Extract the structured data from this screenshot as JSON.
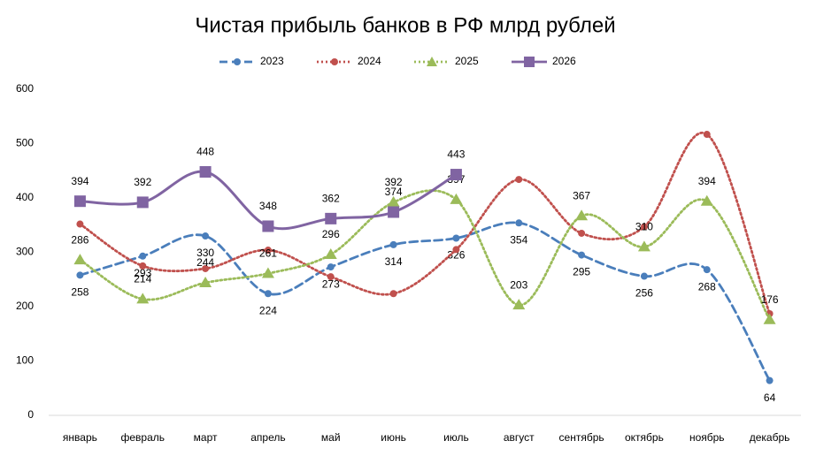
{
  "chart_data": {
    "type": "line",
    "title": "Чистая прибыль банков в РФ млрд рублей",
    "categories": [
      "январь",
      "февраль",
      "март",
      "апрель",
      "май",
      "июнь",
      "июль",
      "август",
      "сентябрь",
      "октябрь",
      "ноябрь",
      "декабрь"
    ],
    "series": [
      {
        "name": "2023",
        "color": "#4a7ebb",
        "dash": "dashed",
        "marker": "circle",
        "data_labels": true,
        "values": [
          258,
          293,
          330,
          224,
          273,
          314,
          326,
          354,
          295,
          256,
          268,
          64
        ]
      },
      {
        "name": "2024",
        "color": "#c0504d",
        "dash": "dotted",
        "marker": "circle",
        "data_labels": false,
        "values": [
          352,
          275,
          270,
          304,
          255,
          224,
          305,
          434,
          335,
          347,
          517,
          187
        ]
      },
      {
        "name": "2025",
        "color": "#9bbb59",
        "dash": "dotted",
        "marker": "triangle",
        "data_labels": true,
        "values": [
          286,
          214,
          244,
          261,
          296,
          392,
          397,
          203,
          367,
          310,
          394,
          176
        ]
      },
      {
        "name": "2026",
        "color": "#8064a2",
        "dash": "solid",
        "marker": "square",
        "data_labels": true,
        "values": [
          394,
          392,
          448,
          348,
          362,
          374,
          443,
          null,
          null,
          null,
          null,
          null
        ]
      }
    ],
    "ylim": [
      0,
      600
    ],
    "yticks": [
      0,
      100,
      200,
      300,
      400,
      500,
      600
    ],
    "grid": false,
    "smooth": true,
    "legend": "top"
  }
}
